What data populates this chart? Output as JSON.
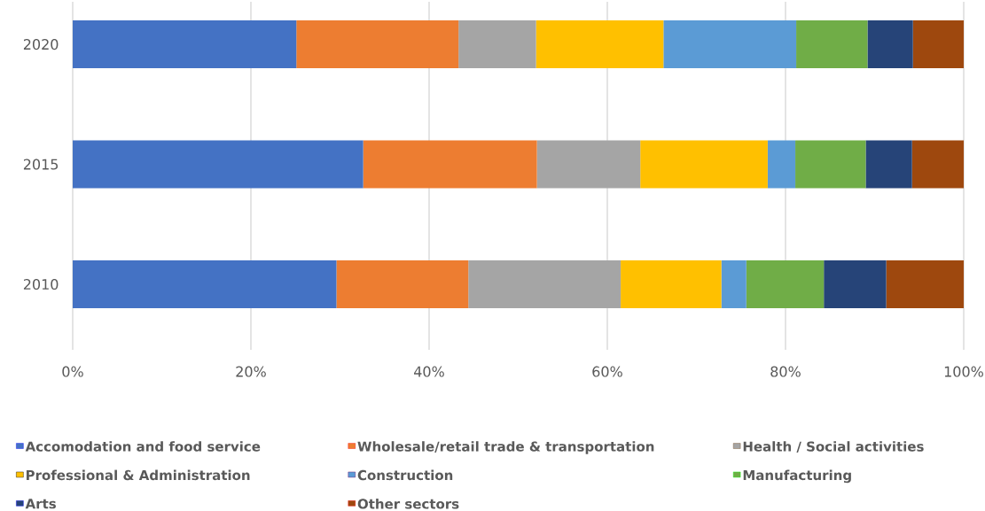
{
  "chart_data": {
    "type": "bar",
    "orientation": "horizontal",
    "stacked": true,
    "categories": [
      "2020",
      "2015",
      "2010"
    ],
    "series": [
      {
        "name": "Accomodation and food service",
        "color": "#4472c4",
        "values": [
          25.1,
          32.6,
          29.6
        ]
      },
      {
        "name": "Wholesale/retail trade & transportation",
        "color": "#ed7d31",
        "values": [
          18.2,
          19.5,
          14.8
        ]
      },
      {
        "name": "Health / Social activities",
        "color": "#a5a5a5",
        "values": [
          8.7,
          11.6,
          17.1
        ]
      },
      {
        "name": "Professional & Administration",
        "color": "#ffc000",
        "values": [
          14.3,
          14.3,
          11.3
        ]
      },
      {
        "name": "Construction",
        "color": "#5b9bd5",
        "values": [
          14.9,
          3.1,
          2.8
        ]
      },
      {
        "name": "Manufacturing",
        "color": "#70ad47",
        "values": [
          8.0,
          7.9,
          8.7
        ]
      },
      {
        "name": "Arts",
        "color": "#264478",
        "values": [
          5.1,
          5.2,
          7.0
        ]
      },
      {
        "name": "Other sectors",
        "color": "#9e480e",
        "values": [
          5.7,
          5.8,
          8.7
        ]
      }
    ],
    "xlim": [
      0,
      100
    ],
    "xticks": [
      {
        "value": 0,
        "label": "0%"
      },
      {
        "value": 20,
        "label": "20%"
      },
      {
        "value": 40,
        "label": "40%"
      },
      {
        "value": 60,
        "label": "60%"
      },
      {
        "value": 80,
        "label": "80%"
      },
      {
        "value": 100,
        "label": "100%"
      }
    ],
    "grid": "x",
    "legend": "bottom"
  }
}
